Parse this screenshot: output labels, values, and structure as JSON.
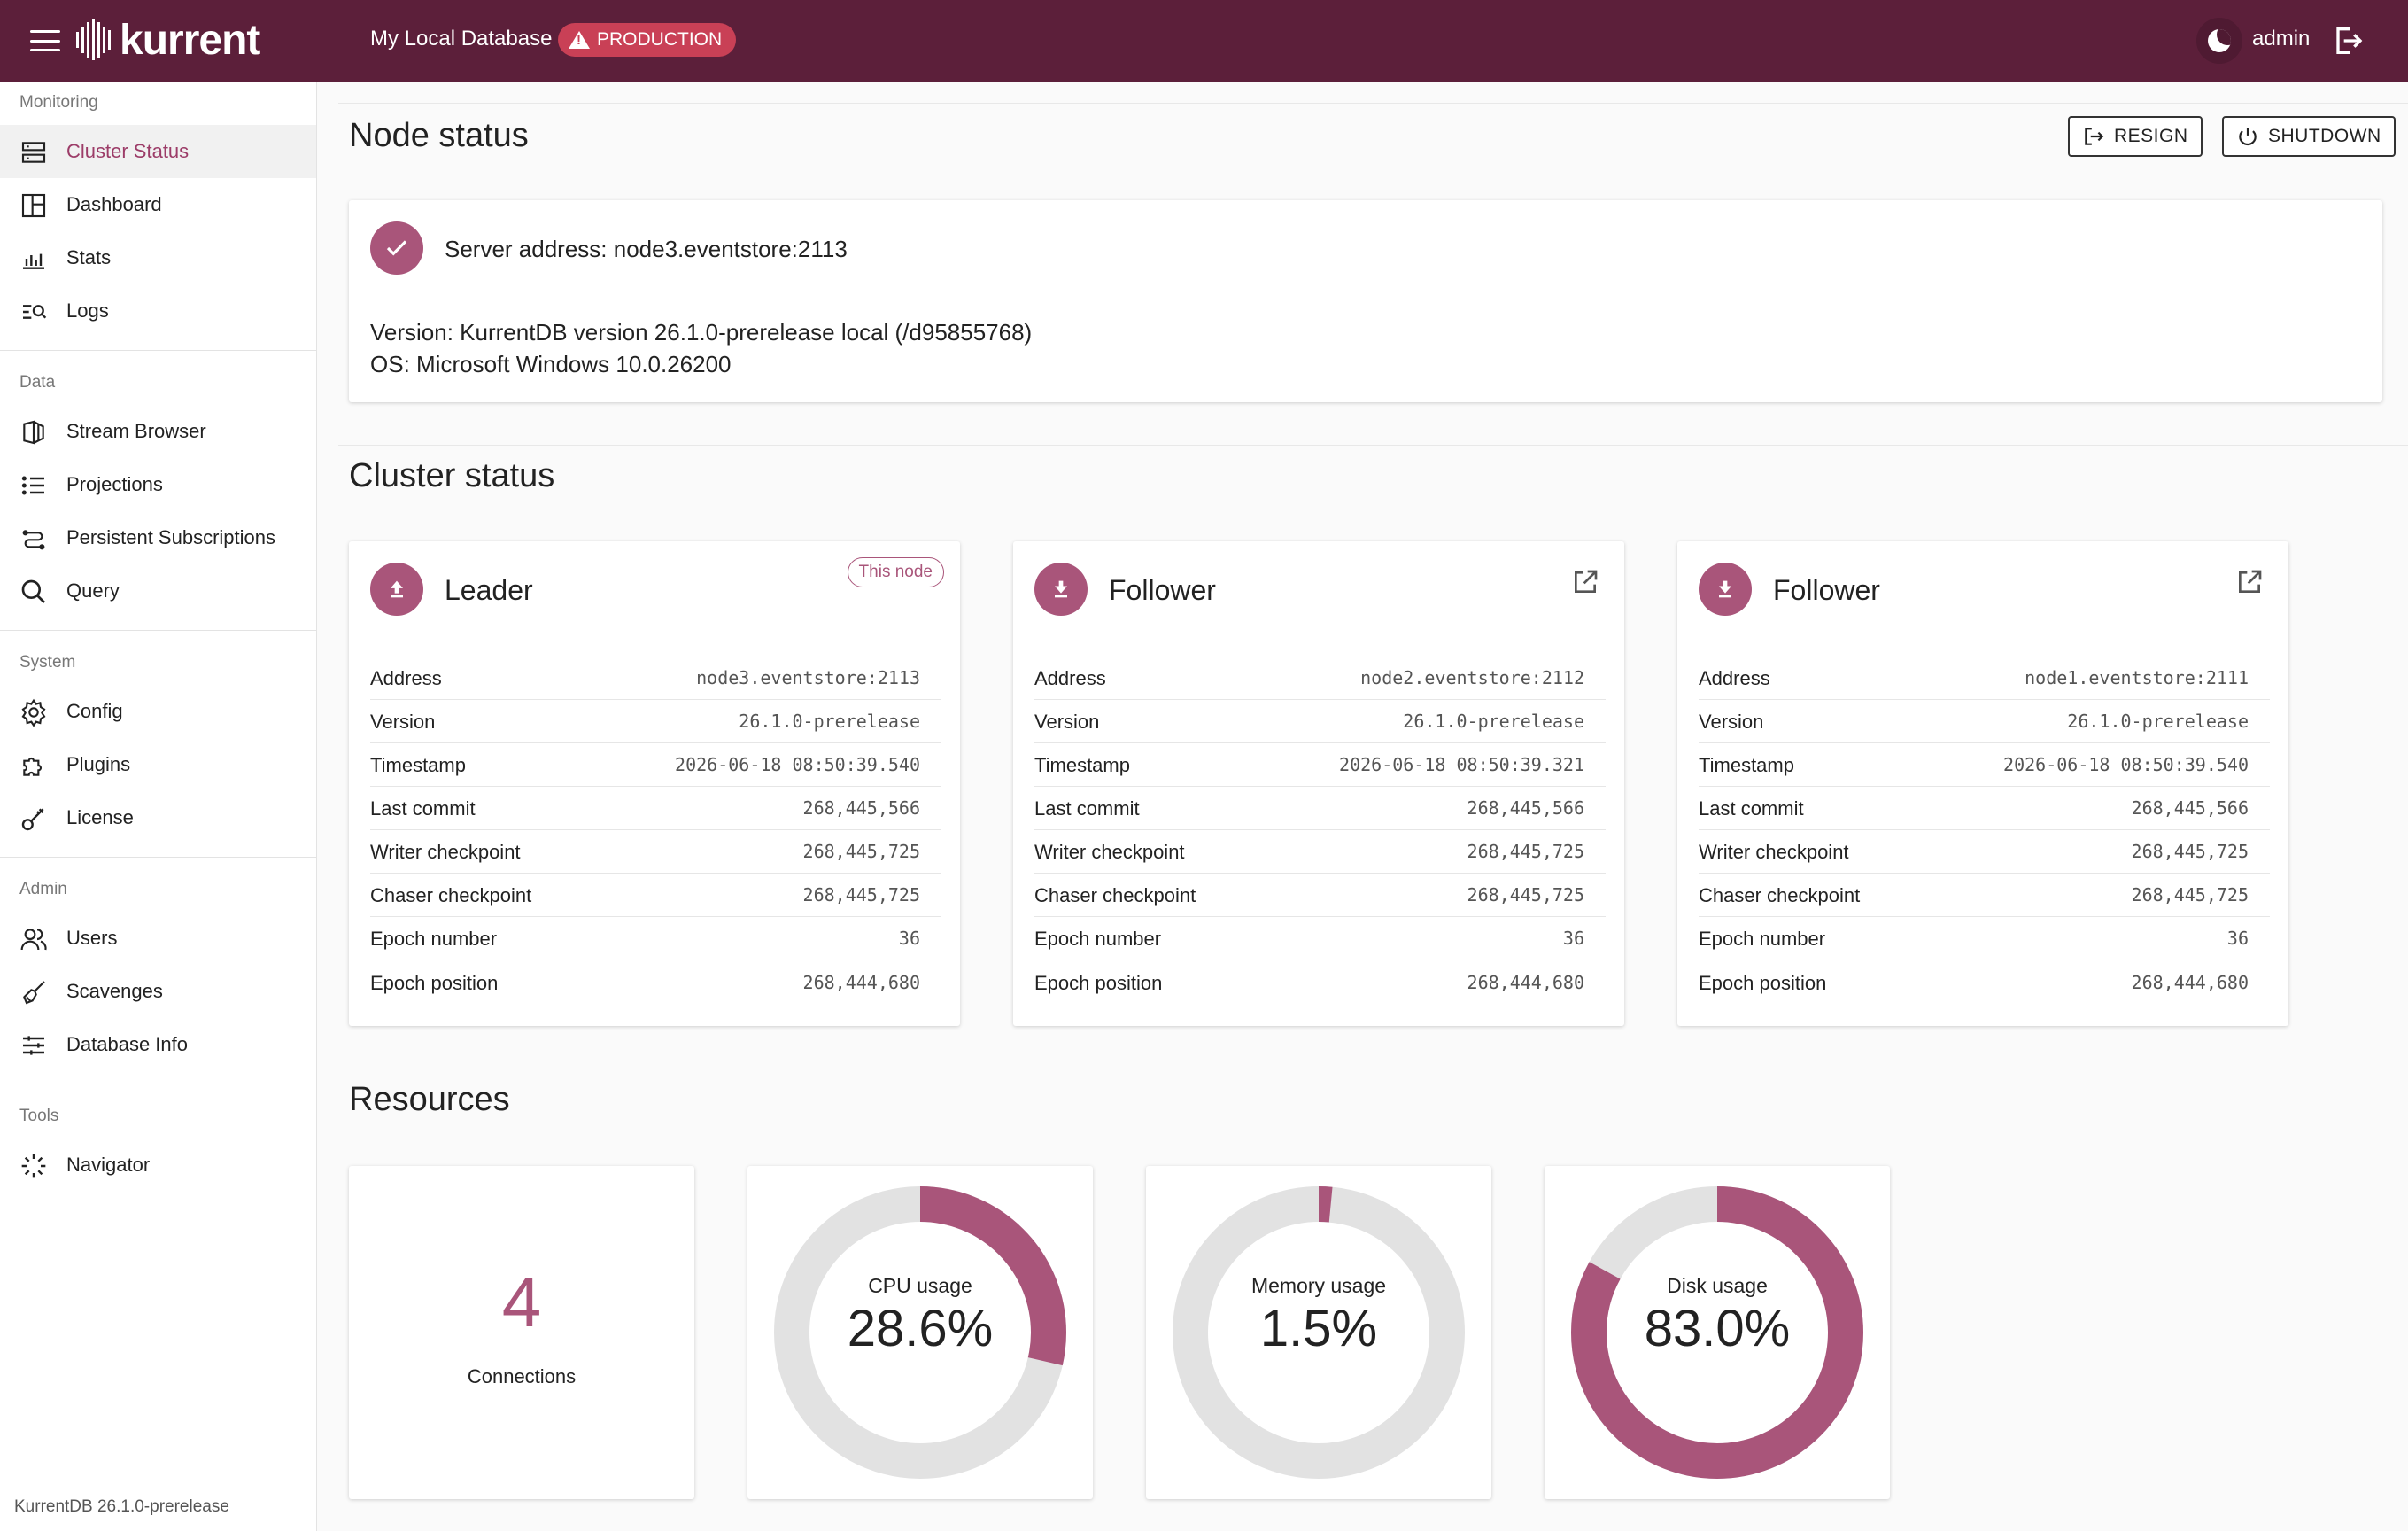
{
  "header": {
    "logo_text": "kurrent",
    "db_name": "My Local Database",
    "env_badge": "PRODUCTION",
    "user": "admin"
  },
  "sidebar": {
    "sections": [
      {
        "title": "Monitoring",
        "items": [
          {
            "label": "Cluster Status",
            "icon": "server-icon",
            "active": true
          },
          {
            "label": "Dashboard",
            "icon": "dashboard-icon"
          },
          {
            "label": "Stats",
            "icon": "bar-chart-icon"
          },
          {
            "label": "Logs",
            "icon": "log-search-icon"
          }
        ]
      },
      {
        "title": "Data",
        "items": [
          {
            "label": "Stream Browser",
            "icon": "stream-icon"
          },
          {
            "label": "Projections",
            "icon": "list-icon"
          },
          {
            "label": "Persistent Subscriptions",
            "icon": "subscriptions-icon"
          },
          {
            "label": "Query",
            "icon": "search-icon"
          }
        ]
      },
      {
        "title": "System",
        "items": [
          {
            "label": "Config",
            "icon": "gear-icon"
          },
          {
            "label": "Plugins",
            "icon": "puzzle-icon"
          },
          {
            "label": "License",
            "icon": "key-icon"
          }
        ]
      },
      {
        "title": "Admin",
        "items": [
          {
            "label": "Users",
            "icon": "users-icon"
          },
          {
            "label": "Scavenges",
            "icon": "broom-icon"
          },
          {
            "label": "Database Info",
            "icon": "sliders-icon"
          }
        ]
      },
      {
        "title": "Tools",
        "items": [
          {
            "label": "Navigator",
            "icon": "navigator-icon"
          }
        ]
      }
    ],
    "footer": "KurrentDB 26.1.0-prerelease"
  },
  "node_status": {
    "title": "Node status",
    "resign_label": "RESIGN",
    "shutdown_label": "SHUTDOWN",
    "server_address": "Server address: node3.eventstore:2113",
    "version": "Version: KurrentDB version 26.1.0-prerelease local (/d95855768)",
    "os": "OS: Microsoft Windows 10.0.26200"
  },
  "cluster": {
    "title": "Cluster status",
    "nodes": [
      {
        "role": "Leader",
        "badge": "This node",
        "rows": [
          {
            "k": "Address",
            "v": "node3.eventstore:2113"
          },
          {
            "k": "Version",
            "v": "26.1.0-prerelease"
          },
          {
            "k": "Timestamp",
            "v": "2026-06-18 08:50:39.540"
          },
          {
            "k": "Last commit",
            "v": "268,445,566"
          },
          {
            "k": "Writer checkpoint",
            "v": "268,445,725"
          },
          {
            "k": "Chaser checkpoint",
            "v": "268,445,725"
          },
          {
            "k": "Epoch number",
            "v": "36"
          },
          {
            "k": "Epoch position",
            "v": "268,444,680"
          }
        ]
      },
      {
        "role": "Follower",
        "rows": [
          {
            "k": "Address",
            "v": "node2.eventstore:2112"
          },
          {
            "k": "Version",
            "v": "26.1.0-prerelease"
          },
          {
            "k": "Timestamp",
            "v": "2026-06-18 08:50:39.321"
          },
          {
            "k": "Last commit",
            "v": "268,445,566"
          },
          {
            "k": "Writer checkpoint",
            "v": "268,445,725"
          },
          {
            "k": "Chaser checkpoint",
            "v": "268,445,725"
          },
          {
            "k": "Epoch number",
            "v": "36"
          },
          {
            "k": "Epoch position",
            "v": "268,444,680"
          }
        ]
      },
      {
        "role": "Follower",
        "rows": [
          {
            "k": "Address",
            "v": "node1.eventstore:2111"
          },
          {
            "k": "Version",
            "v": "26.1.0-prerelease"
          },
          {
            "k": "Timestamp",
            "v": "2026-06-18 08:50:39.540"
          },
          {
            "k": "Last commit",
            "v": "268,445,566"
          },
          {
            "k": "Writer checkpoint",
            "v": "268,445,725"
          },
          {
            "k": "Chaser checkpoint",
            "v": "268,445,725"
          },
          {
            "k": "Epoch number",
            "v": "36"
          },
          {
            "k": "Epoch position",
            "v": "268,444,680"
          }
        ]
      }
    ]
  },
  "resources": {
    "title": "Resources",
    "connections": {
      "value": "4",
      "label": "Connections"
    },
    "gauges": [
      {
        "label": "CPU usage",
        "display": "28.6%",
        "fraction": 0.286
      },
      {
        "label": "Memory usage",
        "display": "1.5%",
        "fraction": 0.015
      },
      {
        "label": "Disk usage",
        "display": "83.0%",
        "fraction": 0.83
      }
    ]
  },
  "colors": {
    "accent": "#a9557a",
    "header_bg": "#5c1f3a",
    "badge_bg": "#c94056",
    "track": "#e2e2e2"
  }
}
